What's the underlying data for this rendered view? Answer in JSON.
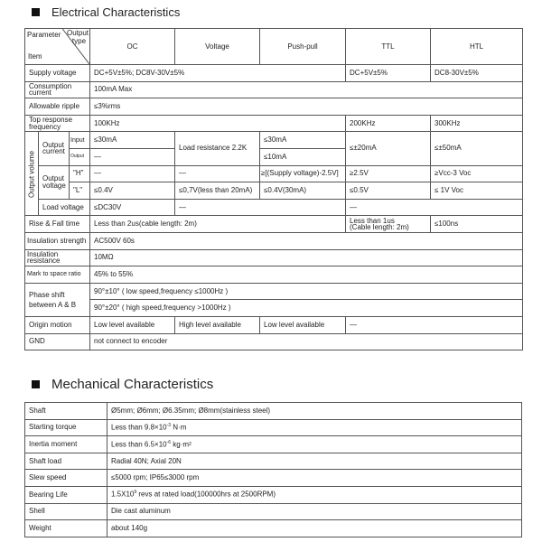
{
  "electrical": {
    "title": "Electrical Characteristics",
    "header": {
      "parameter": "Parameter",
      "output": "Output",
      "type": "type",
      "item": "Item",
      "types": [
        "OC",
        "Voltage",
        "Push-pull",
        "TTL",
        "HTL"
      ]
    },
    "supply_voltage": {
      "label": "Supply voltage",
      "oc_to_pushpull": "DC+5V±5%; DC8V-30V±5%",
      "ttl": "DC+5V±5%",
      "htl": "DC8-30V±5%"
    },
    "consumption": {
      "label": "Consumption current",
      "value": "100mA Max"
    },
    "ripple": {
      "label": "Allowable ripple",
      "value": "≤3%rms"
    },
    "top_response": {
      "label": "Top response frequency",
      "oc_to_pushpull": "100KHz",
      "ttl": "200KHz",
      "htl": "300KHz"
    },
    "output_volume": {
      "label": "Output volume",
      "current_label": "Output current",
      "input": {
        "label": "Input",
        "oc": "≤30mA",
        "pushpull": "≤30mA"
      },
      "output": {
        "label": "Output",
        "oc": "—",
        "pushpull": "≤10mA"
      },
      "voltage_load_resistance": "Load resistance 2.2K",
      "ttl_current": "≤±20mA",
      "htl_current": "≤±50mA",
      "voltage_label": "Output voltage",
      "high": {
        "label": "\"H\"",
        "oc": "—",
        "voltage": "—",
        "pushpull": "≥[(Supply voltage)-2.5V]",
        "ttl": "≥2.5V",
        "htl": "≥Vcc-3   Voc"
      },
      "low": {
        "label": "\"L\"",
        "oc": "≤0.4V",
        "voltage": "≤0,7V(less than 20mA)",
        "pushpull": "≤0.4V(30mA)",
        "ttl": "≤0.5V",
        "htl": "≤ 1V   Voc"
      },
      "load_voltage": {
        "label": "Load voltage",
        "oc": "≤DC30V",
        "voltage_pushpull": "—",
        "ttl_htl": "—"
      }
    },
    "rise_fall": {
      "label": "Rise & Fall time",
      "oc_to_pushpull": "Less than 2us(cable length: 2m)",
      "ttl_line1": "Less than 1us",
      "ttl_line2": "(Cable length: 2m)",
      "htl": "≤100ns"
    },
    "insulation_strength": {
      "label": "Insulation strength",
      "value": "AC500V  60s"
    },
    "insulation_resistance": {
      "label": "Insulation resistance",
      "value": "10MΩ"
    },
    "mark_space": {
      "label": "Mark to space ratio",
      "value": "45% to 55%"
    },
    "phase_shift": {
      "label": "Phase shift between A & B",
      "low": "90°±10° ( low speed,frequency ≤1000Hz )",
      "high": "90°±20° ( high speed,frequency >1000Hz )"
    },
    "origin": {
      "label": "Origin motion",
      "oc": "Low level available",
      "voltage": "High level available",
      "pushpull": "Low level available",
      "ttl_htl": "—"
    },
    "gnd": {
      "label": "GND",
      "value": "not connect to encoder"
    }
  },
  "mechanical": {
    "title": "Mechanical Characteristics",
    "rows": [
      {
        "label": "Shaft",
        "value": "Ø5mm; Ø6mm; Ø6.35mm; Ø8mm(stainless steel)"
      },
      {
        "label": "Starting torque",
        "value": "Less than 9.8×10",
        "sup": "-3",
        "suffix": " N·m"
      },
      {
        "label": "Inertia moment",
        "value": "Less than 6.5×10",
        "sup": "-6",
        "suffix": " kg·m²"
      },
      {
        "label": "Shaft load",
        "value": "Radial 40N;  Axial 20N"
      },
      {
        "label": "Slew speed",
        "value": "≤5000 rpm;  IP65≤3000 rpm"
      },
      {
        "label": "Bearing Life",
        "value": "1.5X10",
        "sup": "9",
        "suffix": " revs at rated load(100000hrs at 2500RPM)"
      },
      {
        "label": "Shell",
        "value": "Die cast aluminum"
      },
      {
        "label": "Weight",
        "value": "about 140g"
      }
    ]
  }
}
